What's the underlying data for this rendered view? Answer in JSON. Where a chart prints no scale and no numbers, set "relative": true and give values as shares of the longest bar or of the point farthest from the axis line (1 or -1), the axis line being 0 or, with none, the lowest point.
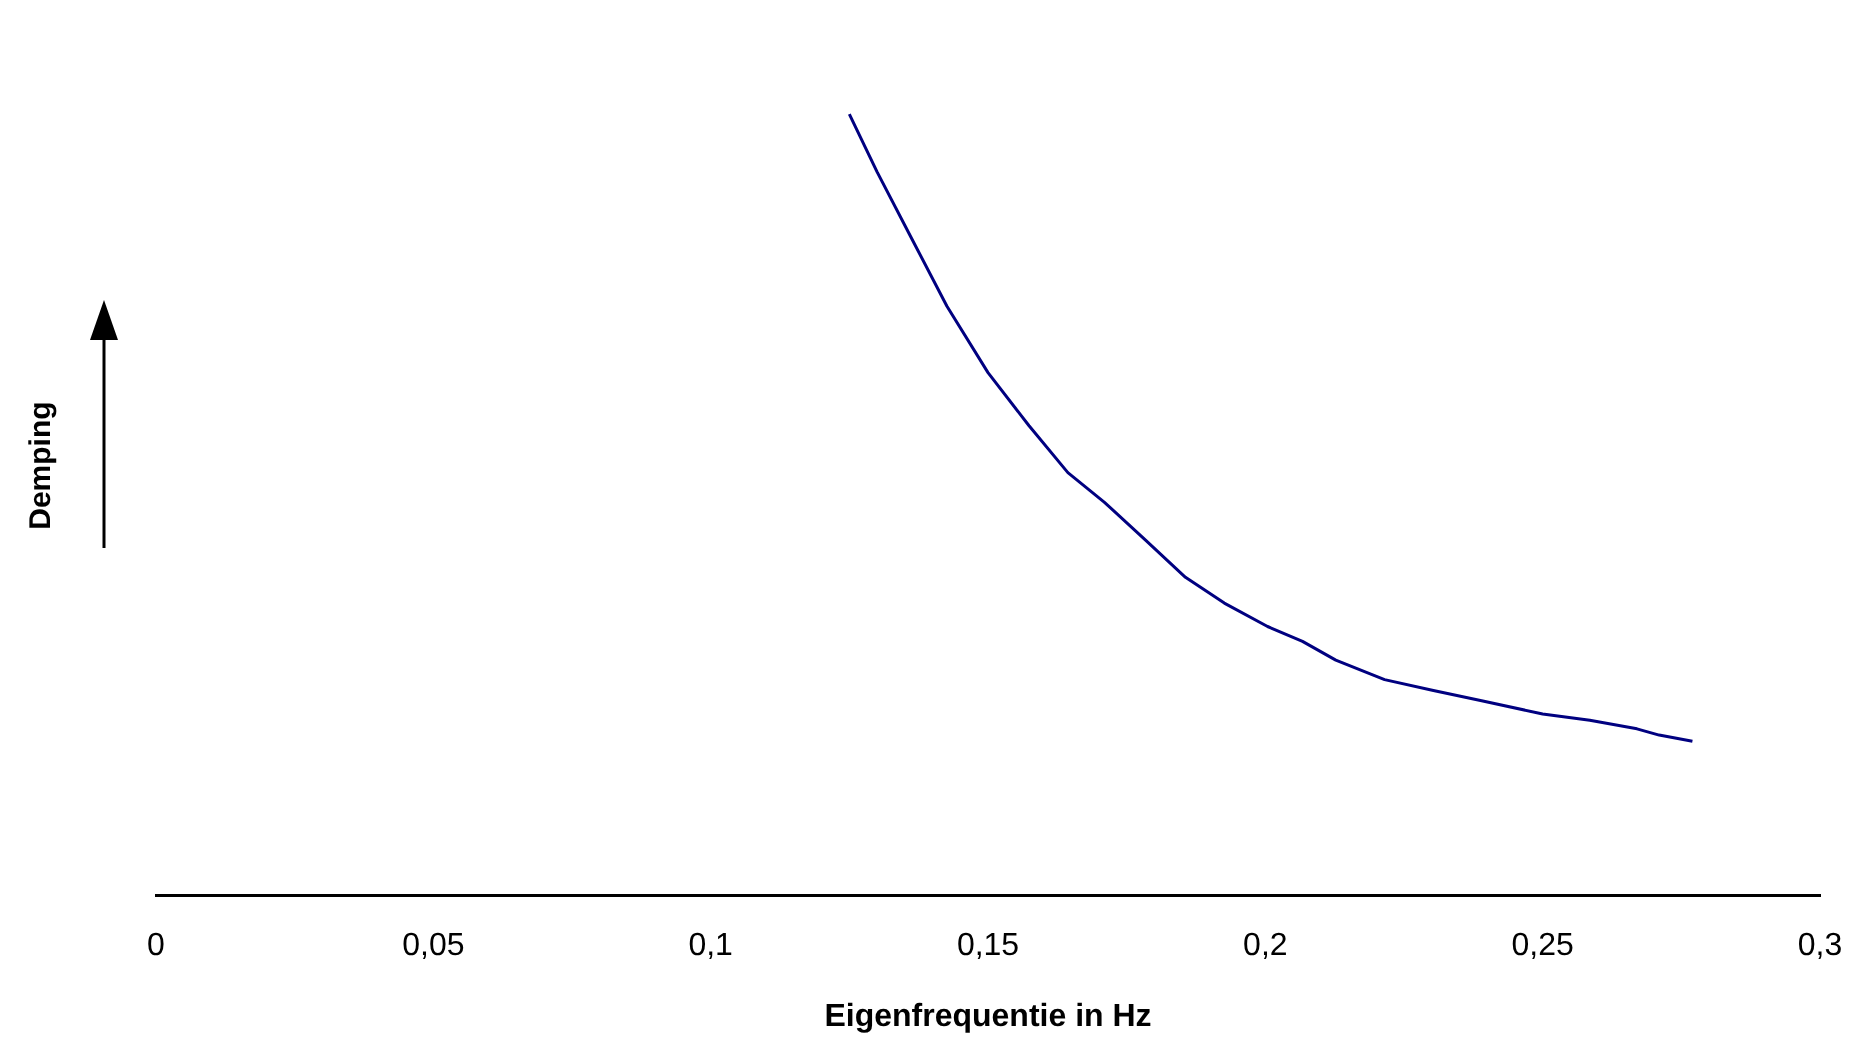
{
  "chart_data": {
    "type": "line",
    "xlabel": "Eigenfrequentie in Hz",
    "ylabel": "Demping",
    "relative": true,
    "grid": false,
    "legend": false,
    "marker": "none",
    "line_style": "solid",
    "xlim": [
      0,
      0.3
    ],
    "xticks": [
      0,
      {
        "value": 0.05,
        "label": "0,05"
      },
      {
        "value": 0.1,
        "label": "0,1"
      },
      {
        "value": 0.15,
        "label": "0,15"
      },
      {
        "value": 0.2,
        "label": "0,2"
      },
      {
        "value": 0.25,
        "label": "0,25"
      },
      {
        "value": 0.3,
        "label": "0,3"
      }
    ],
    "series": [
      {
        "color": "#000080",
        "x": [
          0.125,
          0.13,
          0.136,
          0.1426,
          0.15,
          0.1574,
          0.1644,
          0.171,
          0.1785,
          0.1856,
          0.1926,
          0.2004,
          0.2067,
          0.2127,
          0.2215,
          0.2303,
          0.239,
          0.25,
          0.2585,
          0.267,
          0.271,
          0.277
        ],
        "values": [
          1,
          0.926,
          0.844,
          0.754,
          0.669,
          0.601,
          0.541,
          0.503,
          0.454,
          0.407,
          0.374,
          0.344,
          0.325,
          0.301,
          0.276,
          0.262,
          0.249,
          0.232,
          0.224,
          0.213,
          0.205,
          0.197
        ]
      }
    ]
  }
}
